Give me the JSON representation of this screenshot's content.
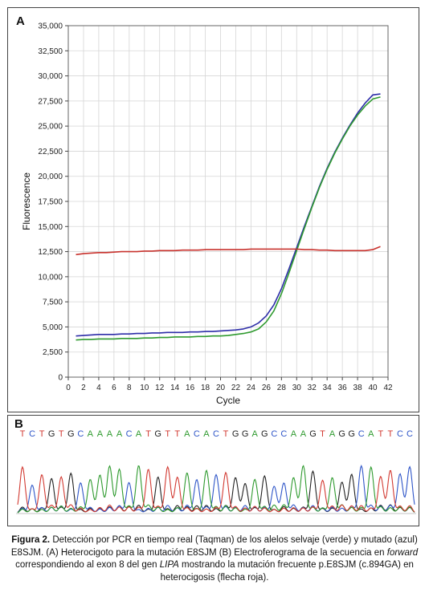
{
  "chart_data": {
    "type": "line",
    "panel_label": "A",
    "xlabel": "Cycle",
    "ylabel": "Fluorescence",
    "xlim": [
      0,
      42
    ],
    "ylim": [
      0,
      35000
    ],
    "x_ticks": [
      0,
      2,
      4,
      6,
      8,
      10,
      12,
      14,
      16,
      18,
      20,
      22,
      24,
      26,
      28,
      30,
      32,
      34,
      36,
      38,
      40,
      42
    ],
    "y_ticks": [
      0,
      2500,
      5000,
      7500,
      10000,
      12500,
      15000,
      17500,
      20000,
      22500,
      25000,
      27500,
      30000,
      32500,
      35000
    ],
    "y_tick_labels": [
      "0",
      "2,500",
      "5,000",
      "7,500",
      "10,000",
      "12,500",
      "15,000",
      "17,500",
      "20,000",
      "22,500",
      "25,000",
      "27,500",
      "30,000",
      "32,500",
      "35,000"
    ],
    "grid": true,
    "x": [
      1,
      2,
      3,
      4,
      5,
      6,
      7,
      8,
      9,
      10,
      11,
      12,
      13,
      14,
      15,
      16,
      17,
      18,
      19,
      20,
      21,
      22,
      23,
      24,
      25,
      26,
      27,
      28,
      29,
      30,
      31,
      32,
      33,
      34,
      35,
      36,
      37,
      38,
      39,
      40,
      41
    ],
    "series": [
      {
        "color": "#2d2da8",
        "values": [
          4100,
          4150,
          4200,
          4250,
          4250,
          4250,
          4300,
          4300,
          4350,
          4350,
          4400,
          4400,
          4450,
          4450,
          4450,
          4500,
          4500,
          4550,
          4550,
          4600,
          4650,
          4700,
          4800,
          5000,
          5400,
          6100,
          7200,
          8800,
          10800,
          12900,
          15000,
          17000,
          19000,
          20800,
          22400,
          23800,
          25100,
          26300,
          27300,
          28100,
          28200
        ]
      },
      {
        "color": "#2f9a2f",
        "values": [
          3700,
          3750,
          3750,
          3800,
          3800,
          3800,
          3850,
          3850,
          3850,
          3900,
          3900,
          3950,
          3950,
          4000,
          4000,
          4000,
          4050,
          4050,
          4100,
          4100,
          4150,
          4250,
          4350,
          4500,
          4800,
          5500,
          6600,
          8300,
          10400,
          12600,
          14800,
          16900,
          18900,
          20700,
          22300,
          23700,
          25000,
          26100,
          27000,
          27700,
          27900
        ]
      },
      {
        "color": "#c8322d",
        "values": [
          12200,
          12300,
          12350,
          12400,
          12400,
          12450,
          12500,
          12500,
          12500,
          12550,
          12550,
          12600,
          12600,
          12600,
          12650,
          12650,
          12650,
          12700,
          12700,
          12700,
          12700,
          12700,
          12700,
          12750,
          12750,
          12750,
          12750,
          12750,
          12750,
          12750,
          12700,
          12700,
          12650,
          12650,
          12600,
          12600,
          12600,
          12600,
          12600,
          12700,
          13000
        ]
      }
    ]
  },
  "electropherogram": {
    "panel_label": "B",
    "sequence": [
      "T",
      "C",
      "T",
      "G",
      "T",
      "G",
      "C",
      "A",
      "A",
      "A",
      "A",
      "C",
      "A",
      "T",
      "G",
      "T",
      "T",
      "A",
      "C",
      "A",
      "C",
      "T",
      "G",
      "G",
      "A",
      "G",
      "C",
      "C",
      "A",
      "A",
      "G",
      "T",
      "A",
      "G",
      "G",
      "C",
      "A",
      "T",
      "T",
      "C",
      "C"
    ],
    "base_colors": {
      "A": "#2e9a2e",
      "C": "#2f56c8",
      "G": "#222222",
      "T": "#d23a32"
    }
  },
  "caption": {
    "figure_label": "Figura 2.",
    "part1": " Detección por PCR en tiempo real (Taqman) de los alelos selvaje (verde) y mutado (azul) E8SJM. (A) Heterocigoto para la mutación E8SJM (B) Electroferograma de la secuencia en ",
    "forward": "forward",
    "part2": " correspondiendo al exon 8 del gen ",
    "gene": "LIPA",
    "part3": " mostrando la mutación frecuente p.E8SJM (c.894GA) en heterocigosis (flecha roja)."
  }
}
